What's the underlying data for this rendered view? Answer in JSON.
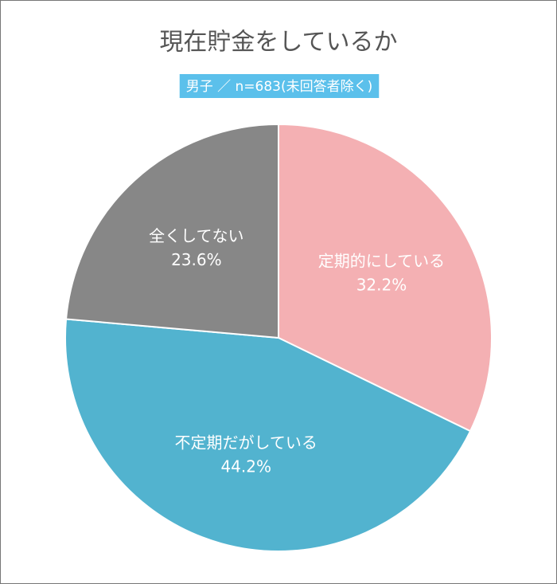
{
  "chart_data": {
    "type": "pie",
    "title": "現在貯金をしているか",
    "subtitle": "男子 ／ n=683(未回答者除く)",
    "categories": [
      "定期的にしている",
      "不定期だがしている",
      "全くしてない"
    ],
    "values": [
      32.2,
      44.2,
      23.6
    ],
    "value_labels": [
      "32.2%",
      "44.2%",
      "23.6%"
    ],
    "colors": [
      "#f4b0b3",
      "#52b3cf",
      "#878787"
    ]
  }
}
